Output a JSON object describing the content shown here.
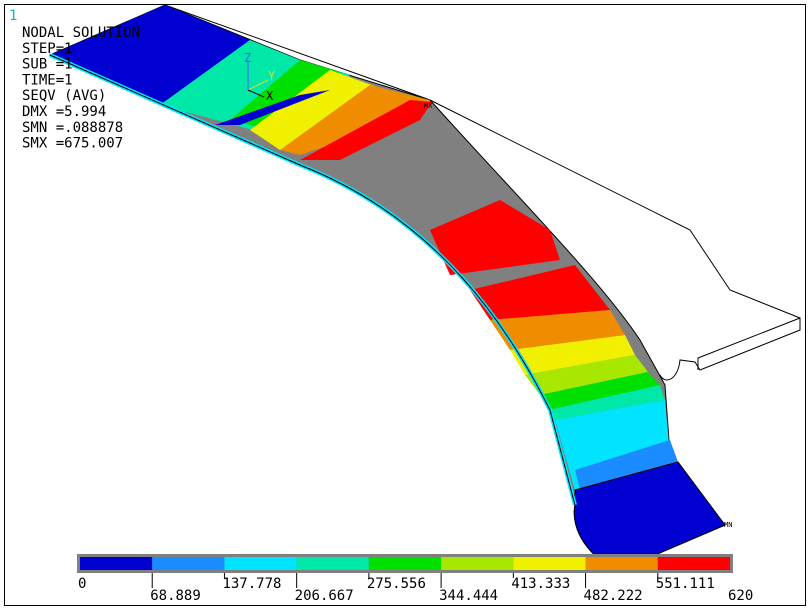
{
  "window": {
    "number": "1"
  },
  "info": [
    "NODAL SOLUTION",
    "STEP=1",
    "SUB =1",
    "TIME=1",
    "SEQV      (AVG)",
    "DMX =5.994",
    "SMN =.088878",
    "SMX =675.007"
  ],
  "triad": {
    "z": "Z",
    "y": "Y",
    "x": "X"
  },
  "markers": {
    "max": "MX",
    "min": "MN"
  },
  "legend": {
    "labels": [
      "0",
      "68.889",
      "137.778",
      "206.667",
      "275.556",
      "344.444",
      "413.333",
      "482.222",
      "551.111",
      "620"
    ],
    "colors": [
      "#0000d0",
      "#1a8cff",
      "#00e4ff",
      "#00e8a8",
      "#00e000",
      "#a8e800",
      "#f0f000",
      "#f08c00",
      "#ff0000"
    ]
  }
}
